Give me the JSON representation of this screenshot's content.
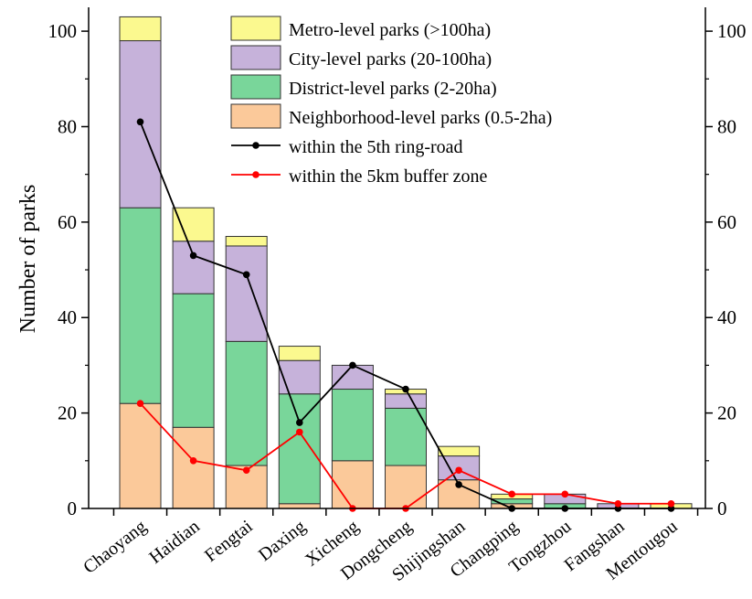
{
  "chart_data": {
    "type": "bar",
    "ylabel": "Number of parks",
    "ylim": [
      0,
      105
    ],
    "yticks": [
      0,
      20,
      40,
      60,
      80,
      100
    ],
    "grid": false,
    "legend_position": "top-right",
    "categories": [
      "Chaoyang",
      "Haidian",
      "Fengtai",
      "Daxing",
      "Xicheng",
      "Dongcheng",
      "Shijingshan",
      "Changping",
      "Tongzhou",
      "Fangshan",
      "Mentougou"
    ],
    "stacked_series": [
      {
        "name": "Neighborhood-level parks (0.5-2ha)",
        "color": "#fbc99a",
        "values": [
          22,
          17,
          9,
          1,
          10,
          9,
          6,
          1,
          0,
          0,
          0
        ]
      },
      {
        "name": "District-level parks (2-20ha)",
        "color": "#79d69a",
        "values": [
          41,
          28,
          26,
          23,
          15,
          12,
          0,
          1,
          1,
          0,
          0
        ]
      },
      {
        "name": "City-level parks (20-100ha)",
        "color": "#c6b2da",
        "values": [
          35,
          11,
          20,
          7,
          5,
          3,
          5,
          0,
          2,
          1,
          0
        ]
      },
      {
        "name": "Metro-level parks (>100ha)",
        "color": "#fbf98f",
        "values": [
          5,
          7,
          2,
          3,
          0,
          1,
          2,
          1,
          0,
          0,
          1
        ]
      }
    ],
    "line_series": [
      {
        "name": "within the 5th ring-road",
        "color": "#000000",
        "values": [
          81,
          53,
          49,
          18,
          30,
          25,
          5,
          0,
          0,
          0,
          0
        ]
      },
      {
        "name": "within the 5km buffer zone",
        "color": "#ff0000",
        "values": [
          22,
          10,
          8,
          16,
          0,
          0,
          8,
          3,
          3,
          1,
          1
        ]
      }
    ],
    "legend_order": [
      "Metro-level parks (>100ha)",
      "City-level parks (20-100ha)",
      "District-level parks (2-20ha)",
      "Neighborhood-level parks (0.5-2ha)",
      "within the 5th ring-road",
      "within the 5km buffer zone"
    ]
  }
}
